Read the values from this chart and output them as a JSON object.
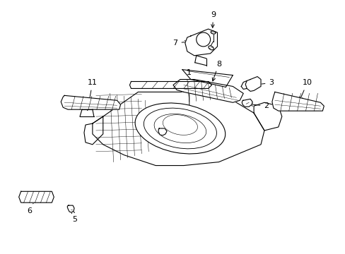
{
  "background_color": "#ffffff",
  "line_color": "#000000",
  "fig_width": 4.89,
  "fig_height": 3.6,
  "dpi": 100,
  "font_size": 8,
  "lw": 0.8
}
